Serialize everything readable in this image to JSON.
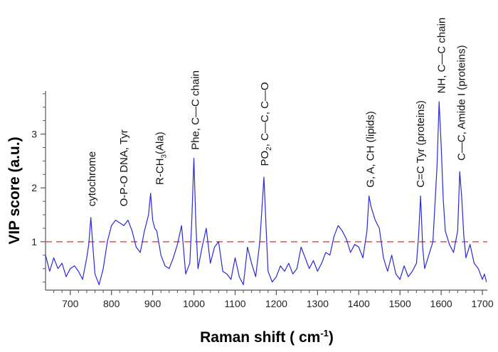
{
  "chart_data": {
    "type": "line",
    "title": "",
    "xlabel_main": "Raman shift ( cm",
    "xlabel_sup": "-1",
    "xlabel_end": ")",
    "ylabel": "VIP score (a.u.)",
    "xlim": [
      640,
      1712
    ],
    "ylim": [
      0.1,
      3.8
    ],
    "xticks": [
      700,
      800,
      900,
      1000,
      1100,
      1200,
      1300,
      1400,
      1500,
      1600,
      1700
    ],
    "yticks": [
      1,
      2,
      3
    ],
    "threshold": {
      "value": 1,
      "color": "#e06060",
      "style": "dashed"
    },
    "series": [
      {
        "name": "VIP score",
        "color": "#2a2ad8",
        "x": [
          640,
          650,
          660,
          670,
          680,
          690,
          700,
          710,
          720,
          730,
          740,
          745,
          750,
          755,
          760,
          770,
          780,
          790,
          800,
          810,
          820,
          830,
          840,
          850,
          860,
          870,
          880,
          890,
          895,
          900,
          905,
          910,
          920,
          930,
          940,
          950,
          960,
          970,
          980,
          990,
          995,
          1000,
          1005,
          1010,
          1020,
          1030,
          1040,
          1050,
          1060,
          1070,
          1080,
          1090,
          1100,
          1110,
          1120,
          1130,
          1140,
          1150,
          1160,
          1165,
          1170,
          1175,
          1180,
          1190,
          1200,
          1210,
          1220,
          1230,
          1240,
          1250,
          1260,
          1270,
          1280,
          1290,
          1300,
          1310,
          1320,
          1330,
          1340,
          1350,
          1360,
          1370,
          1380,
          1390,
          1400,
          1410,
          1420,
          1425,
          1430,
          1440,
          1450,
          1460,
          1470,
          1480,
          1490,
          1500,
          1510,
          1520,
          1530,
          1540,
          1545,
          1550,
          1555,
          1560,
          1570,
          1580,
          1590,
          1595,
          1600,
          1605,
          1610,
          1620,
          1630,
          1640,
          1645,
          1650,
          1655,
          1660,
          1670,
          1680,
          1690,
          1700,
          1705,
          1710
        ],
        "y": [
          0.75,
          0.45,
          0.7,
          0.5,
          0.6,
          0.35,
          0.5,
          0.55,
          0.45,
          0.3,
          0.7,
          0.95,
          1.45,
          0.9,
          0.4,
          0.2,
          0.5,
          1.0,
          1.3,
          1.4,
          1.35,
          1.3,
          1.4,
          1.2,
          0.9,
          0.8,
          1.2,
          1.5,
          1.9,
          1.4,
          1.25,
          1.2,
          0.75,
          0.55,
          0.5,
          0.7,
          0.95,
          1.3,
          0.4,
          0.6,
          1.4,
          2.55,
          1.3,
          0.5,
          0.9,
          1.25,
          0.6,
          0.9,
          1.0,
          0.45,
          0.4,
          0.3,
          0.7,
          0.35,
          0.2,
          0.9,
          0.6,
          0.35,
          1.0,
          1.6,
          2.2,
          1.3,
          0.45,
          0.25,
          0.35,
          0.55,
          0.45,
          0.6,
          0.4,
          0.5,
          0.9,
          0.7,
          0.5,
          0.65,
          0.45,
          0.6,
          0.8,
          0.75,
          1.1,
          1.3,
          1.2,
          1.05,
          0.8,
          0.95,
          0.9,
          0.7,
          1.2,
          1.85,
          1.65,
          1.4,
          1.25,
          0.7,
          0.45,
          0.75,
          0.4,
          0.3,
          0.55,
          0.35,
          0.45,
          0.6,
          1.1,
          1.85,
          0.9,
          0.5,
          0.75,
          1.0,
          2.4,
          3.6,
          2.8,
          1.8,
          1.2,
          0.95,
          0.8,
          1.2,
          2.3,
          1.8,
          1.1,
          0.7,
          0.95,
          0.6,
          0.5,
          0.3,
          0.4,
          0.25
        ]
      }
    ],
    "annotations": [
      {
        "x": 752,
        "y": 1.55,
        "text": "cytochrome"
      },
      {
        "x": 830,
        "y": 1.55,
        "text": "O-P-O DNA, Tyr"
      },
      {
        "x": 917,
        "y": 1.95,
        "text": "R-CH",
        "sub": "3",
        "tail": "(Ala)"
      },
      {
        "x": 1003,
        "y": 2.6,
        "text": "Phe, C—C chain"
      },
      {
        "x": 1172,
        "y": 2.3,
        "text": "PO",
        "sub": "2",
        "tail": ", C—C, C—O"
      },
      {
        "x": 1428,
        "y": 1.9,
        "text": "G, A, CH (lipids)"
      },
      {
        "x": 1550,
        "y": 1.9,
        "text": "C=C  Tyr (proteins)"
      },
      {
        "x": 1601,
        "y": 3.65,
        "text": "NH, C—C chain"
      },
      {
        "x": 1649,
        "y": 2.4,
        "text": "C—C, Amide I (proteins)"
      }
    ]
  }
}
